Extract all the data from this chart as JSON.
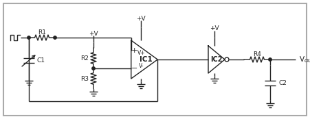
{
  "bg_color": "#ffffff",
  "border_color": "#aaaaaa",
  "line_color": "#222222",
  "lw": 1.0,
  "fig_width": 4.51,
  "fig_height": 1.74,
  "dpi": 100,
  "border": [
    5,
    5,
    446,
    169
  ]
}
